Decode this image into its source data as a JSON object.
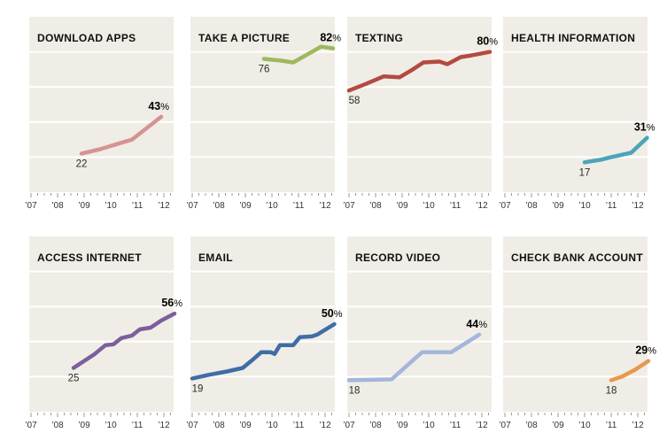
{
  "page": {
    "background": "#ffffff",
    "plot_background": "#f0ede6",
    "gridline_color": "#ffffff",
    "tick_color": "#9b9b93",
    "axis_label_color": "#333333",
    "title_color": "#111111",
    "start_label_color": "#2b2b2b",
    "end_label_color": "#000000"
  },
  "chart_data": [
    {
      "id": "download-apps",
      "type": "line",
      "title": "DOWNLOAD APPS",
      "color": "#d59392",
      "start_label": "22",
      "end_value": "43",
      "end_suffix": "%",
      "x_tick_labels": [
        "’07",
        "’08",
        "’09",
        "’10",
        "’11",
        "’12"
      ],
      "x_range": [
        2007,
        2012.5
      ],
      "ylim": [
        0,
        100
      ],
      "gridline_values": [
        20,
        40,
        60,
        80
      ],
      "points": [
        [
          2008.9,
          22
        ],
        [
          2009.6,
          24.5
        ],
        [
          2010.8,
          30
        ],
        [
          2011.9,
          43
        ]
      ]
    },
    {
      "id": "take-a-picture",
      "type": "line",
      "title": "TAKE A PICTURE",
      "color": "#9db85e",
      "start_label": "76",
      "end_value": "82",
      "end_suffix": "%",
      "x_tick_labels": [
        "’07",
        "’08",
        "’09",
        "’10",
        "’11",
        "’12"
      ],
      "x_range": [
        2007,
        2012.5
      ],
      "ylim": [
        0,
        100
      ],
      "gridline_values": [
        20,
        40,
        60,
        80
      ],
      "points": [
        [
          2009.7,
          76
        ],
        [
          2010.35,
          75
        ],
        [
          2010.8,
          74
        ],
        [
          2011.85,
          83
        ],
        [
          2012.3,
          82
        ]
      ]
    },
    {
      "id": "texting",
      "type": "line",
      "title": "TEXTING",
      "color": "#b24b41",
      "start_label": "58",
      "end_value": "80",
      "end_suffix": "%",
      "x_tick_labels": [
        "’07",
        "’08",
        "’09",
        "’10",
        "’11",
        "’12"
      ],
      "x_range": [
        2007,
        2012.5
      ],
      "ylim": [
        0,
        100
      ],
      "gridline_values": [
        20,
        40,
        60,
        80
      ],
      "points": [
        [
          2007,
          58
        ],
        [
          2007.6,
          61.5
        ],
        [
          2008.3,
          66
        ],
        [
          2008.9,
          65.5
        ],
        [
          2009.4,
          70
        ],
        [
          2009.8,
          74
        ],
        [
          2010.4,
          74.5
        ],
        [
          2010.7,
          73
        ],
        [
          2011.2,
          77
        ],
        [
          2011.6,
          78
        ],
        [
          2012.3,
          80
        ]
      ]
    },
    {
      "id": "health-information",
      "type": "line",
      "title": "HEALTH INFORMATION",
      "color": "#4aa5b8",
      "start_label": "17",
      "end_value": "31",
      "end_suffix": "%",
      "x_tick_labels": [
        "’07",
        "’08",
        "’09",
        "’10",
        "’11",
        "’12"
      ],
      "x_range": [
        2007,
        2012.5
      ],
      "ylim": [
        0,
        100
      ],
      "gridline_values": [
        20,
        40,
        60,
        80
      ],
      "points": [
        [
          2010,
          17
        ],
        [
          2010.6,
          18.5
        ],
        [
          2011,
          20
        ],
        [
          2011.75,
          22.5
        ],
        [
          2012.35,
          31
        ]
      ]
    },
    {
      "id": "access-internet",
      "type": "line",
      "title": "ACCESS INTERNET",
      "color": "#7b5f9d",
      "start_label": "25",
      "end_value": "56",
      "end_suffix": "%",
      "x_tick_labels": [
        "’07",
        "’08",
        "’09",
        "’10",
        "’11",
        "’12"
      ],
      "x_range": [
        2007,
        2012.5
      ],
      "ylim": [
        0,
        100
      ],
      "gridline_values": [
        20,
        40,
        60,
        80
      ],
      "points": [
        [
          2008.6,
          25
        ],
        [
          2009,
          29
        ],
        [
          2009.4,
          33
        ],
        [
          2009.8,
          38
        ],
        [
          2010.1,
          38.5
        ],
        [
          2010.4,
          42
        ],
        [
          2010.8,
          43.5
        ],
        [
          2011.1,
          47
        ],
        [
          2011.5,
          48
        ],
        [
          2011.9,
          52
        ],
        [
          2012.4,
          56
        ]
      ]
    },
    {
      "id": "email",
      "type": "line",
      "title": "EMAIL",
      "color": "#3f6da6",
      "start_label": "19",
      "end_value": "50",
      "end_suffix": "%",
      "x_tick_labels": [
        "’07",
        "’08",
        "’09",
        "’10",
        "’11",
        "’12"
      ],
      "x_range": [
        2007,
        2012.5
      ],
      "ylim": [
        0,
        100
      ],
      "gridline_values": [
        20,
        40,
        60,
        80
      ],
      "points": [
        [
          2007,
          19
        ],
        [
          2007.6,
          21
        ],
        [
          2008.3,
          23
        ],
        [
          2008.9,
          25
        ],
        [
          2009.3,
          30
        ],
        [
          2009.6,
          34
        ],
        [
          2009.95,
          34
        ],
        [
          2010.1,
          33
        ],
        [
          2010.3,
          38
        ],
        [
          2010.8,
          38
        ],
        [
          2011.05,
          42.5
        ],
        [
          2011.5,
          43
        ],
        [
          2011.7,
          44
        ],
        [
          2012.35,
          50
        ]
      ]
    },
    {
      "id": "record-video",
      "type": "line",
      "title": "RECORD VIDEO",
      "color": "#a2b7da",
      "start_label": "18",
      "end_value": "44",
      "end_suffix": "%",
      "x_tick_labels": [
        "’07",
        "’08",
        "’09",
        "’10",
        "’11",
        "’12"
      ],
      "x_range": [
        2007,
        2012.5
      ],
      "ylim": [
        0,
        100
      ],
      "gridline_values": [
        20,
        40,
        60,
        80
      ],
      "points": [
        [
          2007,
          18
        ],
        [
          2008.6,
          18.5
        ],
        [
          2009.75,
          34
        ],
        [
          2010.85,
          34
        ],
        [
          2011.9,
          44
        ]
      ]
    },
    {
      "id": "check-bank-account",
      "type": "line",
      "title": "CHECK BANK ACCOUNT",
      "color": "#e8994e",
      "start_label": "18",
      "end_value": "29",
      "end_suffix": "%",
      "x_tick_labels": [
        "’07",
        "’08",
        "’09",
        "’10",
        "’11",
        "’12"
      ],
      "x_range": [
        2007,
        2012.5
      ],
      "ylim": [
        0,
        100
      ],
      "gridline_values": [
        20,
        40,
        60,
        80
      ],
      "points": [
        [
          2011,
          18
        ],
        [
          2011.4,
          20
        ],
        [
          2011.9,
          24
        ],
        [
          2012.4,
          29
        ]
      ]
    }
  ]
}
